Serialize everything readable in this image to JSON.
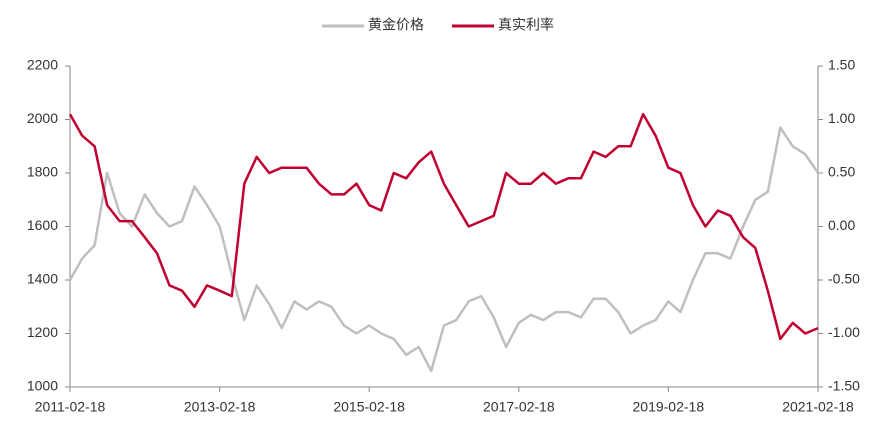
{
  "chart_data": {
    "type": "line",
    "x": [
      "2011-02-18",
      "2011-04-18",
      "2011-06-18",
      "2011-08-18",
      "2011-10-18",
      "2011-12-18",
      "2012-02-18",
      "2012-04-18",
      "2012-06-18",
      "2012-08-18",
      "2012-10-18",
      "2012-12-18",
      "2013-02-18",
      "2013-04-18",
      "2013-06-18",
      "2013-08-18",
      "2013-10-18",
      "2013-12-18",
      "2014-02-18",
      "2014-04-18",
      "2014-06-18",
      "2014-08-18",
      "2014-10-18",
      "2014-12-18",
      "2015-02-18",
      "2015-04-18",
      "2015-06-18",
      "2015-08-18",
      "2015-10-18",
      "2015-12-18",
      "2016-02-18",
      "2016-04-18",
      "2016-06-18",
      "2016-08-18",
      "2016-10-18",
      "2016-12-18",
      "2017-02-18",
      "2017-04-18",
      "2017-06-18",
      "2017-08-18",
      "2017-10-18",
      "2017-12-18",
      "2018-02-18",
      "2018-04-18",
      "2018-06-18",
      "2018-08-18",
      "2018-10-18",
      "2018-12-18",
      "2019-02-18",
      "2019-04-18",
      "2019-06-18",
      "2019-08-18",
      "2019-10-18",
      "2019-12-18",
      "2020-02-18",
      "2020-04-18",
      "2020-06-18",
      "2020-08-18",
      "2020-10-18",
      "2020-12-18",
      "2021-02-18"
    ],
    "series": [
      {
        "name": "黄金价格",
        "color": "#bfbfbf",
        "axis": "y",
        "values": [
          1400,
          1480,
          1530,
          1800,
          1650,
          1600,
          1720,
          1650,
          1600,
          1620,
          1750,
          1680,
          1600,
          1420,
          1250,
          1380,
          1310,
          1220,
          1320,
          1290,
          1320,
          1300,
          1230,
          1200,
          1230,
          1200,
          1180,
          1120,
          1150,
          1060,
          1230,
          1250,
          1320,
          1340,
          1260,
          1150,
          1240,
          1270,
          1250,
          1280,
          1280,
          1260,
          1330,
          1330,
          1280,
          1200,
          1230,
          1250,
          1320,
          1280,
          1400,
          1500,
          1500,
          1480,
          1600,
          1700,
          1730,
          1970,
          1900,
          1870,
          1800
        ]
      },
      {
        "name": "真实利率",
        "color": "#c00030",
        "axis": "y2",
        "values": [
          1.05,
          0.85,
          0.75,
          0.2,
          0.05,
          0.05,
          -0.1,
          -0.25,
          -0.55,
          -0.6,
          -0.75,
          -0.55,
          -0.6,
          -0.65,
          0.4,
          0.65,
          0.5,
          0.55,
          0.55,
          0.55,
          0.4,
          0.3,
          0.3,
          0.4,
          0.2,
          0.15,
          0.5,
          0.45,
          0.6,
          0.7,
          0.4,
          0.2,
          0.0,
          0.05,
          0.1,
          0.5,
          0.4,
          0.4,
          0.5,
          0.4,
          0.45,
          0.45,
          0.7,
          0.65,
          0.75,
          0.75,
          1.05,
          0.85,
          0.55,
          0.5,
          0.2,
          0.0,
          0.15,
          0.1,
          -0.1,
          -0.2,
          -0.6,
          -1.05,
          -0.9,
          -1.0,
          -0.95
        ]
      }
    ],
    "xlim": [
      "2011-02-18",
      "2021-02-18"
    ],
    "xticks": [
      "2011-02-18",
      "2013-02-18",
      "2015-02-18",
      "2017-02-18",
      "2019-02-18",
      "2021-02-18"
    ],
    "ylim": [
      1000,
      2200
    ],
    "yticks": [
      1000,
      1200,
      1400,
      1600,
      1800,
      2000,
      2200
    ],
    "y2lim": [
      -1.5,
      1.5
    ],
    "y2ticks": [
      {
        "value": -1.5,
        "label": "-1.50"
      },
      {
        "value": -1,
        "label": "-1.00"
      },
      {
        "value": -0.5,
        "label": "-0.50"
      },
      {
        "value": 0,
        "label": "0.00"
      },
      {
        "value": 0.5,
        "label": "0.50"
      },
      {
        "value": 1,
        "label": "1.00"
      },
      {
        "value": 1.5,
        "label": "1.50"
      }
    ],
    "legend": "top"
  }
}
